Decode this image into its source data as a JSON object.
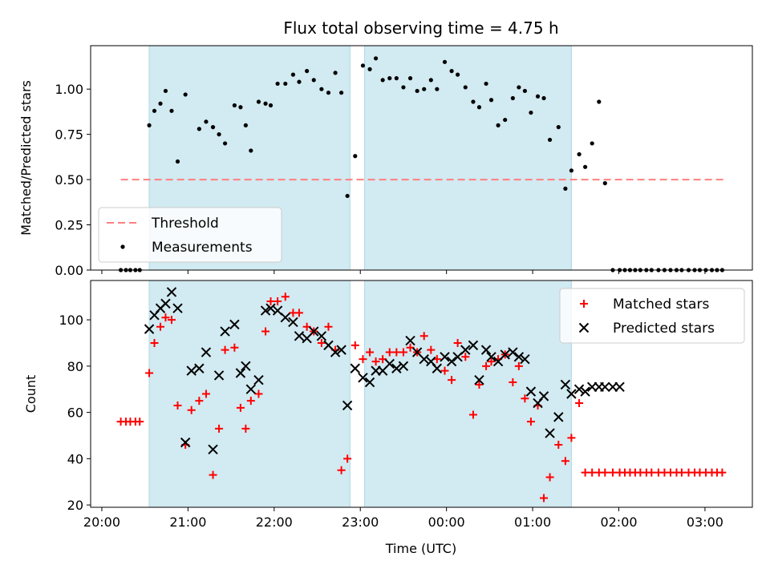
{
  "chart_data": {
    "type": "scatter",
    "title": "Flux total observing time = 4.75 h",
    "xlabel": "Time (UTC)",
    "x_unit": "hours UTC (continuous; values above 24 are after midnight)",
    "xlim": [
      19.87,
      27.55
    ],
    "x_ticks": [
      {
        "x": 20,
        "label": "20:00"
      },
      {
        "x": 21,
        "label": "21:00"
      },
      {
        "x": 22,
        "label": "22:00"
      },
      {
        "x": 23,
        "label": "23:00"
      },
      {
        "x": 24,
        "label": "00:00"
      },
      {
        "x": 25,
        "label": "01:00"
      },
      {
        "x": 26,
        "label": "02:00"
      },
      {
        "x": 27,
        "label": "03:00"
      }
    ],
    "observing_windows": [
      {
        "start": 20.55,
        "end": 22.88
      },
      {
        "start": 23.05,
        "end": 25.45
      }
    ],
    "window_color": "#add8e6",
    "panels": [
      {
        "ylabel": "Matched/Predicted stars",
        "ylim": [
          0,
          1.24
        ],
        "y_ticks": [
          {
            "y": 0,
            "label": "0.00"
          },
          {
            "y": 0.25,
            "label": "0.25"
          },
          {
            "y": 0.5,
            "label": "0.50"
          },
          {
            "y": 0.75,
            "label": "0.75"
          },
          {
            "y": 1.0,
            "label": "1.00"
          }
        ],
        "legend": {
          "position": "lower-left",
          "entries": [
            "Threshold",
            "Measurements"
          ]
        },
        "series": [
          {
            "name": "Threshold",
            "style": "dashed-line",
            "color": "#ff8080",
            "x": [
              20.22,
              27.22
            ],
            "y": [
              0.5,
              0.5
            ]
          },
          {
            "name": "Measurements",
            "style": "dot",
            "color": "#000000",
            "x": [
              20.22,
              20.28,
              20.33,
              20.39,
              20.44,
              20.55,
              20.61,
              20.68,
              20.74,
              20.81,
              20.88,
              20.97,
              21.13,
              21.21,
              21.29,
              21.36,
              21.43,
              21.54,
              21.61,
              21.67,
              21.73,
              21.82,
              21.9,
              21.96,
              22.04,
              22.13,
              22.22,
              22.29,
              22.38,
              22.46,
              22.55,
              22.63,
              22.71,
              22.78,
              22.85,
              22.94,
              23.03,
              23.11,
              23.18,
              23.26,
              23.34,
              23.42,
              23.5,
              23.58,
              23.66,
              23.74,
              23.82,
              23.89,
              23.98,
              24.06,
              24.13,
              24.22,
              24.31,
              24.38,
              24.46,
              24.52,
              24.6,
              24.68,
              24.77,
              24.84,
              24.91,
              24.98,
              25.06,
              25.13,
              25.2,
              25.3,
              25.38,
              25.45,
              25.54,
              25.61,
              25.69,
              25.77,
              25.84,
              25.93,
              26.01,
              26.07,
              26.13,
              26.19,
              26.25,
              26.32,
              26.38,
              26.46,
              26.53,
              26.6,
              26.67,
              26.73,
              26.81,
              26.88,
              26.94,
              27.01,
              27.08,
              27.14,
              27.2
            ],
            "y": [
              0.0,
              0.0,
              0.0,
              0.0,
              0.0,
              0.8,
              0.88,
              0.92,
              0.99,
              0.88,
              0.6,
              0.97,
              0.78,
              0.82,
              0.79,
              0.75,
              0.7,
              0.91,
              0.9,
              0.8,
              0.66,
              0.93,
              0.92,
              0.91,
              1.03,
              1.03,
              1.08,
              1.04,
              1.1,
              1.05,
              1.0,
              0.98,
              1.09,
              0.98,
              0.41,
              0.63,
              1.13,
              1.11,
              1.17,
              1.05,
              1.06,
              1.06,
              1.01,
              1.06,
              0.99,
              1.0,
              1.05,
              1.0,
              1.15,
              1.1,
              1.08,
              1.01,
              0.93,
              0.9,
              1.03,
              0.94,
              0.8,
              0.83,
              0.95,
              1.01,
              0.99,
              0.87,
              0.96,
              0.95,
              0.72,
              0.79,
              0.45,
              0.55,
              0.64,
              0.57,
              0.7,
              0.93,
              0.48,
              0.0,
              0.0,
              0.0,
              0.0,
              0.0,
              0.0,
              0.0,
              0.0,
              0.0,
              0.0,
              0.0,
              0.0,
              0.0,
              0.0,
              0.0,
              0.0,
              0.0,
              0.0,
              0.0,
              0.0
            ]
          }
        ]
      },
      {
        "ylabel": "Count",
        "ylim": [
          19,
          117
        ],
        "y_ticks": [
          {
            "y": 20,
            "label": "20"
          },
          {
            "y": 40,
            "label": "40"
          },
          {
            "y": 60,
            "label": "60"
          },
          {
            "y": 80,
            "label": "80"
          },
          {
            "y": 100,
            "label": "100"
          }
        ],
        "legend": {
          "position": "upper-right",
          "entries": [
            "Matched stars",
            "Predicted stars"
          ]
        },
        "series": [
          {
            "name": "Matched stars",
            "style": "plus",
            "color": "#ff0000",
            "x": [
              20.22,
              20.28,
              20.33,
              20.39,
              20.44,
              20.55,
              20.61,
              20.68,
              20.74,
              20.81,
              20.88,
              20.97,
              21.04,
              21.13,
              21.21,
              21.29,
              21.36,
              21.43,
              21.54,
              21.61,
              21.67,
              21.73,
              21.82,
              21.9,
              21.96,
              22.04,
              22.13,
              22.22,
              22.29,
              22.38,
              22.46,
              22.55,
              22.63,
              22.71,
              22.78,
              22.85,
              22.94,
              23.03,
              23.11,
              23.18,
              23.26,
              23.34,
              23.42,
              23.5,
              23.58,
              23.66,
              23.74,
              23.82,
              23.89,
              23.98,
              24.06,
              24.13,
              24.22,
              24.31,
              24.38,
              24.46,
              24.52,
              24.6,
              24.68,
              24.77,
              24.84,
              24.91,
              24.98,
              25.06,
              25.13,
              25.2,
              25.3,
              25.38,
              25.45,
              25.54,
              25.61,
              25.69,
              25.77,
              25.84,
              25.93,
              26.01,
              26.07,
              26.13,
              26.19,
              26.25,
              26.32,
              26.38,
              26.46,
              26.53,
              26.6,
              26.67,
              26.73,
              26.81,
              26.88,
              26.94,
              27.01,
              27.08,
              27.14,
              27.2
            ],
            "y": [
              56,
              56,
              56,
              56,
              56,
              77,
              90,
              97,
              101,
              100,
              63,
              46,
              61,
              65,
              68,
              33,
              53,
              87,
              88,
              62,
              53,
              65,
              68,
              95,
              108,
              108,
              110,
              103,
              103,
              97,
              95,
              90,
              97,
              87,
              35,
              40,
              89,
              83,
              86,
              82,
              83,
              86,
              86,
              86,
              88,
              86,
              93,
              87,
              83,
              78,
              74,
              90,
              84,
              59,
              72,
              80,
              82,
              83,
              85,
              73,
              80,
              66,
              56,
              63,
              23,
              32,
              46,
              39,
              49,
              64,
              34,
              34,
              34,
              34,
              34,
              34,
              34,
              34,
              34,
              34,
              34,
              34,
              34,
              34,
              34,
              34,
              34,
              34,
              34,
              34,
              34,
              34,
              34,
              34
            ]
          },
          {
            "name": "Predicted stars",
            "style": "x",
            "color": "#000000",
            "x": [
              20.55,
              20.61,
              20.68,
              20.74,
              20.81,
              20.88,
              20.97,
              21.04,
              21.13,
              21.21,
              21.29,
              21.36,
              21.43,
              21.54,
              21.61,
              21.67,
              21.73,
              21.82,
              21.9,
              21.96,
              22.04,
              22.13,
              22.22,
              22.29,
              22.38,
              22.46,
              22.55,
              22.63,
              22.71,
              22.78,
              22.85,
              22.94,
              23.03,
              23.11,
              23.18,
              23.26,
              23.34,
              23.42,
              23.5,
              23.58,
              23.66,
              23.74,
              23.82,
              23.89,
              23.98,
              24.06,
              24.13,
              24.22,
              24.31,
              24.38,
              24.46,
              24.52,
              24.6,
              24.68,
              24.77,
              24.84,
              24.91,
              24.98,
              25.06,
              25.13,
              25.2,
              25.3,
              25.38,
              25.45,
              25.54,
              25.61,
              25.69,
              25.77,
              25.84,
              25.93,
              26.01
            ],
            "y": [
              96,
              102,
              105,
              107,
              112,
              105,
              47,
              78,
              79,
              86,
              44,
              76,
              95,
              98,
              77,
              80,
              70,
              74,
              104,
              105,
              104,
              101,
              99,
              93,
              92,
              95,
              93,
              89,
              86,
              87,
              63,
              79,
              75,
              73,
              78,
              78,
              81,
              79,
              80,
              91,
              86,
              83,
              82,
              79,
              84,
              82,
              84,
              87,
              89,
              74,
              87,
              84,
              82,
              85,
              86,
              84,
              83,
              69,
              64,
              67,
              51,
              58,
              72,
              68,
              70,
              69,
              71,
              71,
              71,
              71,
              71
            ]
          }
        ]
      }
    ],
    "grid": false
  }
}
